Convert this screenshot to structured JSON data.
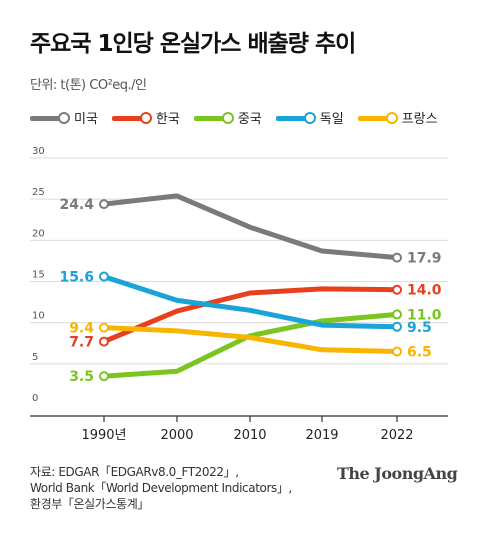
{
  "title": "주요국 1인당 온실가스 배출량 추이",
  "unit_label": "단위: t(톤) CO²eq./인",
  "source_lines": [
    "자료: EDGAR「EDGARv8.0_FT2022」,",
    "World Bank「World Development Indicators」,",
    "환경부「온실가스통계」"
  ],
  "brand": "The JoongAng",
  "chart_data": {
    "type": "line",
    "categories": [
      "1990년",
      "2000",
      "2010",
      "2019",
      "2022"
    ],
    "ylim": [
      0,
      30
    ],
    "yticks": [
      "0",
      "5",
      "10",
      "15",
      "20",
      "25",
      "30"
    ],
    "grid": true,
    "legend_position": "top",
    "series": [
      {
        "name": "미국",
        "color": "#7a7a7a",
        "values": [
          24.4,
          25.4,
          21.6,
          18.7,
          17.9
        ],
        "start_label": "24.4",
        "end_label": "17.9"
      },
      {
        "name": "한국",
        "color": "#e8401c",
        "values": [
          7.7,
          11.4,
          13.6,
          14.1,
          14.0
        ],
        "start_label": "7.7",
        "end_label": "14.0"
      },
      {
        "name": "중국",
        "color": "#7cc521",
        "values": [
          3.5,
          4.1,
          8.4,
          10.2,
          11.0
        ],
        "start_label": "3.5",
        "end_label": "11.0"
      },
      {
        "name": "독일",
        "color": "#1aa3d6",
        "values": [
          15.6,
          12.7,
          11.5,
          9.7,
          9.5
        ],
        "start_label": "15.6",
        "end_label": "9.5"
      },
      {
        "name": "프랑스",
        "color": "#f7b500",
        "values": [
          9.4,
          9.0,
          8.2,
          6.7,
          6.5
        ],
        "start_label": "9.4",
        "end_label": "6.5"
      }
    ]
  }
}
